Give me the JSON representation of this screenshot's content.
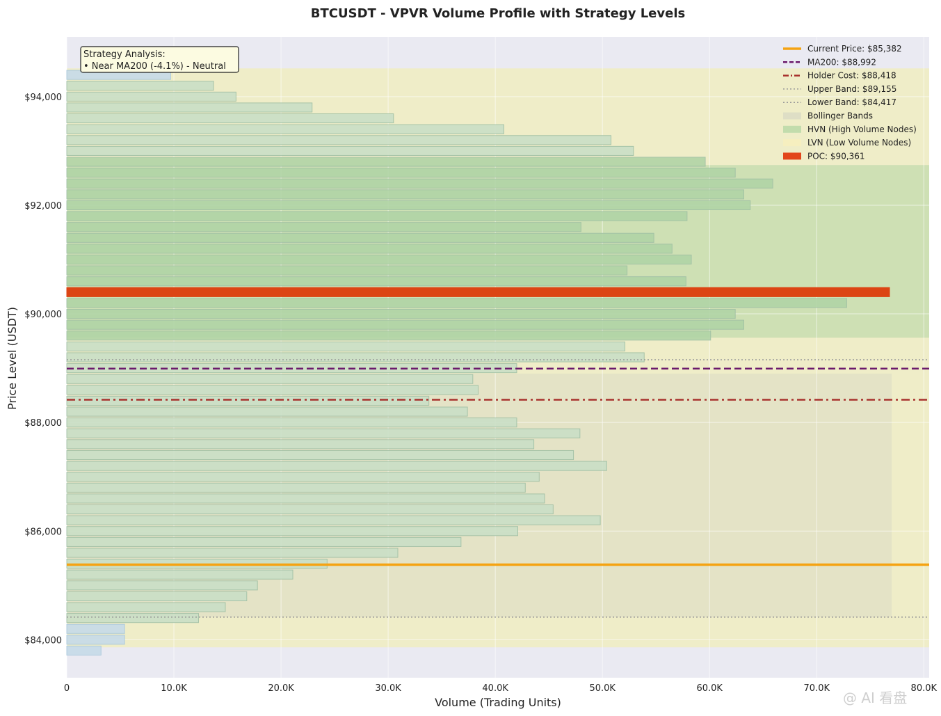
{
  "chart_data": {
    "type": "bar",
    "orientation": "horizontal",
    "title": "BTCUSDT - VPVR Volume Profile with Strategy Levels",
    "xlabel": "Volume (Trading Units)",
    "ylabel": "Price Level (USDT)",
    "xlim": [
      0,
      80500
    ],
    "ylim": [
      83300,
      95100
    ],
    "x_ticks": [
      0,
      10000,
      20000,
      30000,
      40000,
      50000,
      60000,
      70000,
      80000
    ],
    "x_tick_labels": [
      "0",
      "10.0K",
      "20.0K",
      "30.0K",
      "40.0K",
      "50.0K",
      "60.0K",
      "70.0K",
      "80.0K"
    ],
    "y_ticks": [
      84000,
      86000,
      88000,
      90000,
      92000,
      94000
    ],
    "y_tick_labels": [
      "$84,000",
      "$86,000",
      "$88,000",
      "$90,000",
      "$92,000",
      "$94,000"
    ],
    "grid": true,
    "legend_position": "top-right",
    "bin_height": 200,
    "price_bins": [
      83800,
      84000,
      84200,
      84400,
      84600,
      84800,
      85000,
      85200,
      85400,
      85600,
      85800,
      86000,
      86200,
      86400,
      86600,
      86800,
      87000,
      87200,
      87400,
      87600,
      87800,
      88000,
      88200,
      88400,
      88600,
      88800,
      89000,
      89200,
      89400,
      89600,
      89800,
      90000,
      90200,
      90400,
      90600,
      90800,
      91000,
      91200,
      91400,
      91600,
      91800,
      92000,
      92200,
      92400,
      92600,
      92800,
      93000,
      93200,
      93400,
      93600,
      93800,
      94000,
      94200,
      94400
    ],
    "volumes": [
      3200,
      5400,
      5400,
      12300,
      14800,
      16800,
      17800,
      21100,
      24300,
      30900,
      36800,
      42100,
      49800,
      45400,
      44600,
      42800,
      44100,
      50400,
      47300,
      43600,
      47900,
      42000,
      37400,
      33800,
      38400,
      37900,
      42000,
      53900,
      52100,
      60100,
      63200,
      62400,
      72800,
      76800,
      57800,
      52300,
      58300,
      56500,
      54800,
      48000,
      57900,
      63800,
      63200,
      65900,
      62400,
      59600,
      52900,
      50800,
      40800,
      30500,
      22900,
      15800,
      13700,
      9700
    ],
    "bar_categories": [
      "lvn",
      "lvn",
      "lvn",
      "normal",
      "normal",
      "normal",
      "normal",
      "normal",
      "normal",
      "normal",
      "normal",
      "normal",
      "normal",
      "normal",
      "normal",
      "normal",
      "normal",
      "normal",
      "normal",
      "normal",
      "normal",
      "normal",
      "normal",
      "normal",
      "normal",
      "normal",
      "normal",
      "normal",
      "normal",
      "hvn",
      "hvn",
      "hvn",
      "hvn",
      "poc",
      "hvn",
      "hvn",
      "hvn",
      "hvn",
      "hvn",
      "hvn",
      "hvn",
      "hvn",
      "hvn",
      "hvn",
      "hvn",
      "hvn",
      "normal",
      "normal",
      "normal",
      "normal",
      "normal",
      "normal",
      "normal",
      "lvn"
    ],
    "poc_price": 90361,
    "levels": {
      "current_price": 85382,
      "ma200": 88992,
      "holder_cost": 88418,
      "upper_band": 89155,
      "lower_band": 84417
    },
    "hvn_zone": [
      89560,
      92740
    ],
    "lvn_zone": [
      83860,
      94520
    ],
    "bollinger_zone": [
      84417,
      88900
    ],
    "bollinger_zone_volume_max": 77000,
    "legend": [
      {
        "label": "Current Price: $85,382",
        "style": "solid",
        "color": "#f5a312"
      },
      {
        "label": "MA200: $88,992",
        "style": "dashed",
        "color": "#6b1a6b"
      },
      {
        "label": "Holder Cost: $88,418",
        "style": "dashdot",
        "color": "#a8322d"
      },
      {
        "label": "Upper Band: $89,155",
        "style": "dotted",
        "color": "#999999"
      },
      {
        "label": "Lower Band: $84,417",
        "style": "dotted",
        "color": "#999999"
      },
      {
        "label": "Bollinger Bands",
        "style": "patch",
        "color": "#dcdcc4"
      },
      {
        "label": "HVN (High Volume Nodes)",
        "style": "patch",
        "color": "#bcd9a8"
      },
      {
        "label": "LVN (Low Volume Nodes)",
        "style": "patch",
        "color": "#f6eebe"
      },
      {
        "label": "POC: $90,361",
        "style": "patch",
        "color": "#e2461b"
      }
    ],
    "annotation": {
      "line1": "Strategy Analysis:",
      "line2": "• Near MA200 (-4.1%) - Neutral"
    }
  },
  "colors": {
    "plot_bg": "#eaeaf2",
    "lvn_bg": "#efedc8",
    "hvn_bg": "#cee0b4",
    "bollinger_bg": "#e2e0c6",
    "bar_normal": "#cadfc6",
    "bar_hvn": "#b1d4a6",
    "bar_lvn": "#c6dbe9",
    "bar_edge": "#9fbfa4",
    "poc": "#dc4514",
    "current_price": "#f5a312",
    "ma200": "#6b1a6b",
    "holder_cost": "#a8322d",
    "bands": "#999999"
  },
  "watermark": "@ AI 看盘"
}
